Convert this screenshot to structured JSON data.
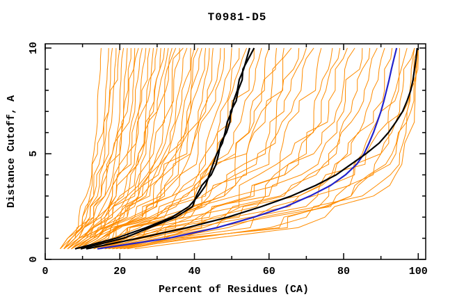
{
  "page": {
    "background": "#ffffff"
  },
  "chart_data": {
    "type": "line",
    "title": "T0981-D5",
    "xlabel": "Percent of Residues (CA)",
    "ylabel": "Distance Cutoff, A",
    "xlim": [
      0,
      102
    ],
    "ylim": [
      0,
      10.2
    ],
    "grid": false,
    "legend": false,
    "axis_color": "#000000",
    "x_major_ticks": [
      0,
      20,
      40,
      60,
      80,
      100
    ],
    "x_tick_labels": [
      "0",
      "20",
      "40",
      "60",
      "80",
      "100"
    ],
    "x_minor_ticks": [
      10,
      30,
      50,
      70,
      90
    ],
    "y_major_ticks": [
      0,
      5,
      10
    ],
    "y_tick_labels": [
      "0",
      "5",
      "10"
    ],
    "y_minor_ticks": [
      1,
      2,
      3,
      4,
      6,
      7,
      8,
      9
    ],
    "cutoffs_fine": [
      0.5,
      1,
      1.5,
      2,
      2.5,
      3,
      3.5,
      4,
      4.5,
      5,
      5.5,
      6,
      6.5,
      7,
      7.5,
      8,
      8.5,
      9,
      9.5,
      10
    ],
    "anchor_cutoffs": [
      0.5,
      1,
      2,
      3,
      5,
      7,
      10
    ],
    "texture_seed": 20181,
    "orange_series": {
      "name": "server-models",
      "color": "#ff8c00",
      "width": 1,
      "percent_at_anchor": [
        [
          4,
          6,
          9,
          11,
          13,
          14,
          15
        ],
        [
          4,
          7,
          10,
          12,
          14,
          16,
          17
        ],
        [
          5,
          7,
          11,
          13,
          16,
          17,
          18
        ],
        [
          5,
          8,
          12,
          14,
          17,
          18,
          19
        ],
        [
          4,
          6,
          10,
          13,
          15,
          17,
          20
        ],
        [
          5,
          8,
          13,
          15,
          18,
          20,
          21
        ],
        [
          6,
          9,
          13,
          16,
          19,
          21,
          22
        ],
        [
          5,
          7,
          12,
          15,
          18,
          21,
          23
        ],
        [
          6,
          10,
          14,
          17,
          20,
          22,
          24
        ],
        [
          5,
          8,
          13,
          16,
          20,
          23,
          25
        ],
        [
          6,
          9,
          15,
          18,
          22,
          24,
          26
        ],
        [
          7,
          10,
          16,
          19,
          23,
          25,
          27
        ],
        [
          5,
          9,
          14,
          18,
          22,
          25,
          28
        ],
        [
          6,
          10,
          15,
          19,
          24,
          26,
          29
        ],
        [
          7,
          11,
          17,
          21,
          25,
          27,
          30
        ],
        [
          6,
          9,
          16,
          20,
          25,
          28,
          31
        ],
        [
          7,
          12,
          18,
          22,
          26,
          29,
          32
        ],
        [
          8,
          12,
          19,
          23,
          28,
          30,
          33
        ],
        [
          6,
          10,
          17,
          22,
          27,
          30,
          34
        ],
        [
          7,
          11,
          18,
          24,
          29,
          32,
          35
        ],
        [
          8,
          13,
          20,
          25,
          30,
          33,
          36
        ],
        [
          7,
          12,
          19,
          25,
          31,
          34,
          37
        ],
        [
          8,
          13,
          21,
          26,
          32,
          35,
          38
        ],
        [
          9,
          14,
          22,
          27,
          33,
          36,
          39
        ],
        [
          8,
          12,
          20,
          26,
          33,
          37,
          40
        ],
        [
          9,
          14,
          23,
          29,
          35,
          38,
          41
        ],
        [
          10,
          15,
          24,
          30,
          36,
          39,
          42
        ],
        [
          9,
          13,
          22,
          28,
          35,
          39,
          43
        ],
        [
          10,
          15,
          25,
          31,
          38,
          41,
          44
        ],
        [
          11,
          16,
          26,
          32,
          39,
          42,
          45
        ],
        [
          9,
          14,
          24,
          31,
          39,
          43,
          47
        ],
        [
          10,
          16,
          27,
          34,
          41,
          44,
          48
        ],
        [
          11,
          17,
          28,
          35,
          43,
          46,
          50
        ],
        [
          10,
          15,
          26,
          34,
          43,
          47,
          52
        ],
        [
          12,
          18,
          30,
          38,
          46,
          49,
          54
        ],
        [
          11,
          17,
          29,
          37,
          46,
          50,
          56
        ],
        [
          12,
          19,
          31,
          40,
          49,
          53,
          58
        ],
        [
          13,
          20,
          33,
          42,
          51,
          55,
          60
        ],
        [
          11,
          18,
          30,
          40,
          51,
          56,
          62
        ],
        [
          14,
          21,
          34,
          44,
          54,
          58,
          64
        ],
        [
          12,
          19,
          32,
          43,
          54,
          59,
          66
        ],
        [
          13,
          21,
          35,
          46,
          57,
          62,
          68
        ],
        [
          15,
          23,
          37,
          48,
          59,
          64,
          70
        ],
        [
          14,
          22,
          36,
          48,
          60,
          66,
          72
        ],
        [
          15,
          24,
          39,
          51,
          63,
          68,
          74
        ],
        [
          13,
          22,
          38,
          52,
          66,
          72,
          77
        ],
        [
          16,
          26,
          42,
          55,
          68,
          74,
          79
        ],
        [
          14,
          24,
          41,
          56,
          70,
          76,
          81
        ],
        [
          17,
          28,
          45,
          59,
          72,
          78,
          83
        ],
        [
          15,
          26,
          44,
          60,
          74,
          80,
          85
        ],
        [
          18,
          30,
          48,
          63,
          76,
          82,
          87
        ],
        [
          16,
          28,
          47,
          64,
          78,
          84,
          89
        ],
        [
          19,
          32,
          52,
          68,
          81,
          86,
          91
        ],
        [
          17,
          30,
          50,
          68,
          82,
          88,
          93
        ],
        [
          20,
          34,
          56,
          72,
          85,
          90,
          95
        ],
        [
          18,
          32,
          55,
          73,
          86,
          92,
          97
        ],
        [
          21,
          36,
          60,
          78,
          90,
          95,
          99
        ],
        [
          22,
          38,
          64,
          82,
          93,
          97,
          100
        ],
        [
          20,
          40,
          70,
          85,
          95,
          98,
          100
        ],
        [
          18,
          36,
          65,
          82,
          94,
          97,
          99
        ],
        [
          16,
          33,
          58,
          76,
          90,
          96,
          100
        ],
        [
          24,
          45,
          75,
          88,
          96,
          99,
          100
        ]
      ]
    },
    "highlight_series": [
      {
        "name": "model-black-center-1",
        "color": "#000000",
        "width": 2.2,
        "percent_at_cutoff": [
          8,
          19,
          27,
          34,
          38.5,
          41,
          43,
          44,
          45,
          46,
          47.5,
          48.2,
          48.8,
          50,
          50.5,
          51.5,
          52,
          53.2,
          54,
          54.8
        ]
      },
      {
        "name": "model-black-center-2",
        "color": "#000000",
        "width": 2.2,
        "percent_at_cutoff": [
          9.5,
          21,
          28,
          35,
          39.5,
          40.5,
          42,
          44.5,
          45.8,
          46.5,
          47,
          48.6,
          49.5,
          49.7,
          51.2,
          51.7,
          52.8,
          53,
          54.5,
          56
        ]
      },
      {
        "name": "model-blue",
        "color": "#2222cc",
        "width": 2.2,
        "percent_at_cutoff": [
          14,
          33,
          46,
          56,
          64.5,
          71,
          76.5,
          80.5,
          83.5,
          85.5,
          86.8,
          88,
          89,
          90,
          90.8,
          91.5,
          92.2,
          92.8,
          93.5,
          94.2
        ]
      },
      {
        "name": "model-black-right",
        "color": "#000000",
        "width": 2.2,
        "percent_at_cutoff": [
          11,
          25,
          38,
          49,
          58,
          66,
          72.5,
          78,
          82,
          86,
          89.5,
          92,
          94,
          95.8,
          97,
          98,
          98.6,
          99,
          99.4,
          99.7
        ]
      }
    ]
  }
}
